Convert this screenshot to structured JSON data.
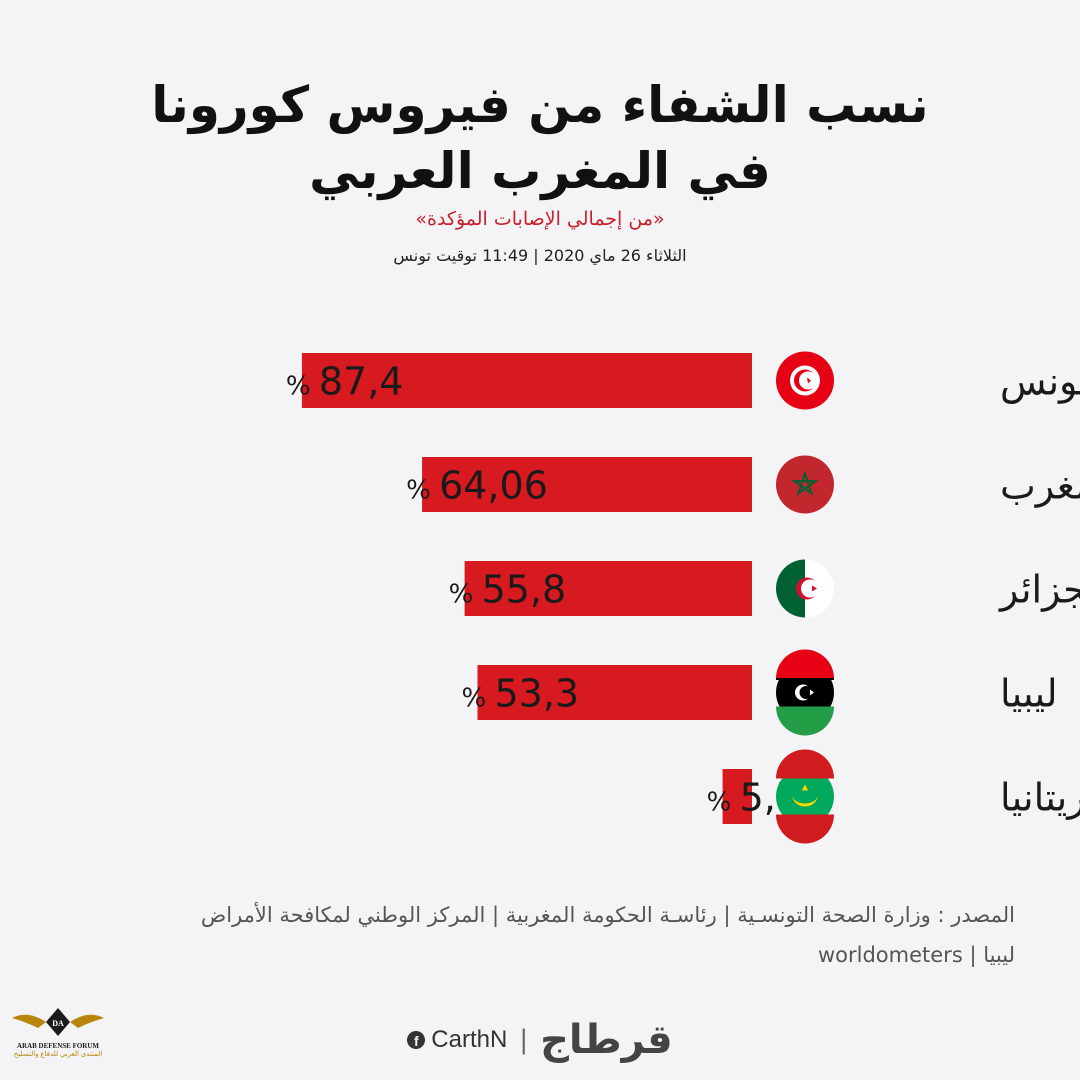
{
  "header": {
    "title_line1": "نسب الشفاء من فيروس كورونا",
    "title_line2": "في المغرب العربي",
    "subtitle": "«من إجمالي الإصابات المؤكدة»",
    "timestamp": "الثلاثاء 26 ماي 2020 | 11:49 توقيت تونس"
  },
  "chart_data": {
    "type": "bar",
    "orientation": "horizontal",
    "categories": [
      "تونس",
      "المغرب",
      "الجزائر",
      "ليبيا",
      "موريتانيا"
    ],
    "values": [
      87.4,
      64.06,
      55.8,
      53.3,
      5.7
    ],
    "value_labels": [
      "87,4",
      "64,06",
      "55,8",
      "53,3",
      "5,7"
    ],
    "unit": "%",
    "bar_color": "#d71920",
    "flags": [
      "tunisia-flag-icon",
      "morocco-flag-icon",
      "algeria-flag-icon",
      "libya-flag-icon",
      "mauritania-flag-icon"
    ],
    "xlim": [
      0,
      100
    ]
  },
  "source": {
    "label": "المصدر :",
    "line1": "وزارة الصحة التونسـية | رئاسـة الحكومة المغربية | المركز الوطني لمكافحة الأمراض",
    "line2": "ليبيا | worldometers"
  },
  "footer": {
    "brand": "قرطاج",
    "separator": "|",
    "facebook_handle": "CarthN"
  },
  "watermark": {
    "initials": "DA",
    "english": "ARAB DEFENSE FORUM",
    "arabic": "المنتدى العربي للدفاع والتسليح"
  }
}
